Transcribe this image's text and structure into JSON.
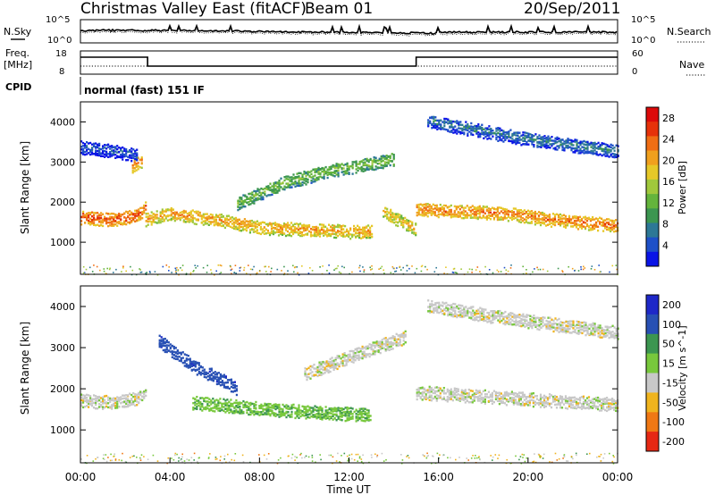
{
  "header": {
    "station": "Christmas Valley East (fitACF)",
    "beam": "Beam 01",
    "date": "20/Sep/2011"
  },
  "strip_panels": {
    "noise": {
      "left_label": "N.Sky",
      "right_label": "N.Search",
      "left_ticks": [
        "10^5",
        "10^0"
      ],
      "right_ticks": [
        "10^5",
        "10^0"
      ]
    },
    "freq": {
      "left_label_1": "Freq.",
      "left_label_2": "[MHz]",
      "right_label": "Nave",
      "left_ticks": [
        "18",
        "8"
      ],
      "right_ticks": [
        "60",
        "0"
      ]
    },
    "cpid": {
      "label": "CPID",
      "text": "normal (fast) 151 IF"
    }
  },
  "time_axis": {
    "label": "Time UT",
    "ticks": [
      "00:00",
      "04:00",
      "08:00",
      "12:00",
      "16:00",
      "20:00",
      "00:00"
    ]
  },
  "chart_data": [
    {
      "type": "heatmap",
      "name": "power",
      "ylabel": "Slant Range [km]",
      "yticks": [
        "1000",
        "2000",
        "3000",
        "4000"
      ],
      "ylim": [
        200,
        4500
      ],
      "xlim_hours": [
        0,
        24
      ],
      "colorbar": {
        "label": "Power [dB]",
        "ticks": [
          "4",
          "8",
          "12",
          "16",
          "20",
          "24",
          "28"
        ],
        "colors": [
          "#0a14e6",
          "#1e50c8",
          "#2d7896",
          "#3c9650",
          "#64b43c",
          "#a0c83c",
          "#e6c828",
          "#f0a01e",
          "#f06e14",
          "#e6320a",
          "#dc0a0a"
        ]
      },
      "bands": [
        {
          "t": [
            0,
            1.5,
            2.5,
            2.9
          ],
          "r": [
            1650,
            1600,
            1700,
            1900
          ],
          "level": 26
        },
        {
          "t": [
            2.9,
            4,
            6,
            8,
            10,
            12,
            13
          ],
          "r": [
            1600,
            1750,
            1600,
            1400,
            1350,
            1300,
            1300
          ],
          "level": 22
        },
        {
          "t": [
            13.5,
            14.5,
            15
          ],
          "r": [
            1800,
            1500,
            1350
          ],
          "level": 20
        },
        {
          "t": [
            15,
            17,
            19,
            21,
            23,
            24
          ],
          "r": [
            1850,
            1800,
            1750,
            1600,
            1500,
            1450
          ],
          "level": 24
        },
        {
          "t": [
            2.3,
            2.7
          ],
          "r": [
            2950,
            3050
          ],
          "level": 24
        },
        {
          "t": [
            7,
            9,
            11,
            13,
            14
          ],
          "r": [
            2000,
            2500,
            2800,
            3000,
            3100
          ],
          "level": 14
        },
        {
          "t": [
            15.5,
            18,
            20,
            22,
            24
          ],
          "r": [
            4050,
            3800,
            3600,
            3450,
            3300
          ],
          "level": 8
        },
        {
          "t": [
            0,
            1.5,
            2.5
          ],
          "r": [
            3400,
            3300,
            3200
          ],
          "level": 6
        }
      ]
    },
    {
      "type": "heatmap",
      "name": "velocity",
      "ylabel": "Slant Range [km]",
      "yticks": [
        "1000",
        "2000",
        "3000",
        "4000"
      ],
      "ylim": [
        200,
        4500
      ],
      "xlim_hours": [
        0,
        24
      ],
      "colorbar": {
        "label": "Velocity [m s^-1]",
        "ticks": [
          "200",
          "100",
          "50",
          "15",
          "-15",
          "-50",
          "-100",
          "-200"
        ],
        "colors": [
          "#1e28c8",
          "#2850b4",
          "#3c9650",
          "#78c83c",
          "#c8c8c8",
          "#f0b41e",
          "#f07814",
          "#e62814"
        ]
      },
      "bands": [
        {
          "t": [
            0,
            1.5,
            2.5,
            2.9
          ],
          "r": [
            1750,
            1700,
            1800,
            1950
          ],
          "level": 0
        },
        {
          "t": [
            3.5,
            5,
            6.5,
            7
          ],
          "r": [
            3200,
            2600,
            2200,
            2000
          ],
          "level": 180
        },
        {
          "t": [
            5,
            8,
            11,
            13
          ],
          "r": [
            1700,
            1550,
            1450,
            1400
          ],
          "level": 40
        },
        {
          "t": [
            15,
            18,
            21,
            24
          ],
          "r": [
            1950,
            1850,
            1750,
            1650
          ],
          "level": 0
        },
        {
          "t": [
            10,
            12,
            14.5
          ],
          "r": [
            2400,
            2800,
            3300
          ],
          "level": 0
        },
        {
          "t": [
            15.5,
            19,
            24
          ],
          "r": [
            4050,
            3750,
            3400
          ],
          "level": 0
        }
      ]
    }
  ]
}
